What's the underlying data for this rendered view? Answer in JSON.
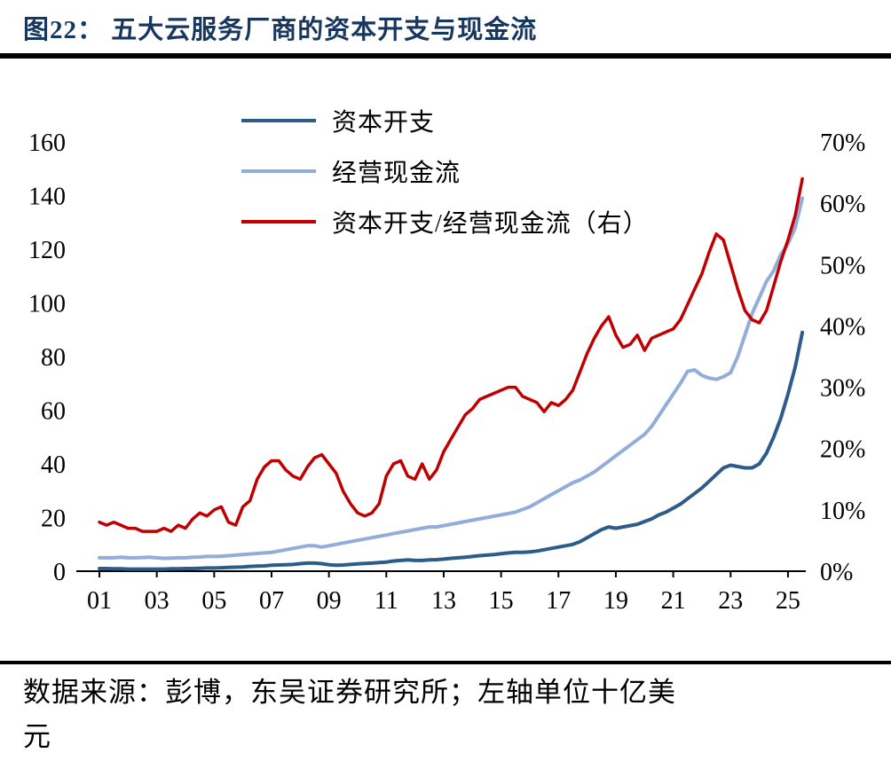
{
  "title": "图22：  五大云服务厂商的资本开支与现金流",
  "footer_lines": [
    "数据来源：彭博，东吴证券研究所；左轴单位十亿美",
    "元"
  ],
  "chart_data": {
    "type": "line",
    "title": "五大云服务厂商的资本开支与现金流",
    "x_start": 2001,
    "x_step": 0.25,
    "x_end": 2025.5,
    "x_ticks": [
      "01",
      "03",
      "05",
      "07",
      "09",
      "11",
      "13",
      "15",
      "17",
      "19",
      "21",
      "23",
      "25"
    ],
    "x_tick_years": [
      2001,
      2003,
      2005,
      2007,
      2009,
      2011,
      2013,
      2015,
      2017,
      2019,
      2021,
      2023,
      2025
    ],
    "left_axis": {
      "min": 0,
      "max": 160,
      "ticks": [
        0,
        20,
        40,
        60,
        80,
        100,
        120,
        140,
        160
      ],
      "unit": "十亿美元"
    },
    "right_axis": {
      "min": 0,
      "max": 70,
      "ticks": [
        0,
        10,
        20,
        30,
        40,
        50,
        60,
        70
      ],
      "unit": "%"
    },
    "grid": false,
    "legend_position": "top-center",
    "series": [
      {
        "id": "capex",
        "name": "资本开支",
        "axis": "left",
        "color": "#2E5C8A",
        "width": 4,
        "values": [
          1,
          1,
          0.9,
          0.9,
          0.8,
          0.8,
          0.8,
          0.8,
          0.8,
          0.8,
          0.9,
          0.9,
          1,
          1,
          1.1,
          1.2,
          1.2,
          1.3,
          1.4,
          1.5,
          1.6,
          1.8,
          1.9,
          2,
          2.2,
          2.3,
          2.4,
          2.5,
          2.8,
          3,
          3,
          2.8,
          2.4,
          2.2,
          2.3,
          2.5,
          2.7,
          2.9,
          3,
          3.2,
          3.4,
          3.8,
          4,
          4.2,
          4,
          4,
          4.2,
          4.3,
          4.5,
          4.8,
          5,
          5.2,
          5.5,
          5.8,
          6,
          6.2,
          6.5,
          6.8,
          7,
          7,
          7.2,
          7.5,
          8,
          8.5,
          9,
          9.5,
          10,
          11,
          12.5,
          14,
          15.5,
          16.5,
          16,
          16.5,
          17,
          17.5,
          18.5,
          19.5,
          21,
          22,
          23.5,
          25,
          27,
          29,
          31,
          33.5,
          36,
          38.5,
          39.5,
          39,
          38.5,
          38.5,
          40,
          44,
          50,
          57,
          66,
          76,
          89
        ]
      },
      {
        "id": "ocf",
        "name": "经营现金流",
        "axis": "left",
        "color": "#93ADDB",
        "width": 4,
        "values": [
          5,
          5,
          5,
          5.2,
          5,
          5,
          5.1,
          5.2,
          5,
          4.8,
          4.9,
          5,
          5,
          5.2,
          5.3,
          5.5,
          5.5,
          5.6,
          5.8,
          6,
          6.2,
          6.4,
          6.6,
          6.8,
          7,
          7.5,
          8,
          8.5,
          9,
          9.5,
          9.5,
          9,
          9.5,
          10,
          10.5,
          11,
          11.5,
          12,
          12.5,
          13,
          13.5,
          14,
          14.5,
          15,
          15.5,
          16,
          16.5,
          16.5,
          17,
          17.5,
          18,
          18.5,
          19,
          19.5,
          20,
          20.5,
          21,
          21.5,
          22,
          23,
          24,
          25.5,
          27,
          28.5,
          30,
          31.5,
          33,
          34,
          35.5,
          37,
          39,
          41,
          43,
          45,
          47,
          49,
          51,
          54,
          58,
          62,
          66,
          70,
          74.5,
          75,
          73,
          72,
          71.5,
          72.5,
          74,
          80,
          88,
          96,
          102,
          108,
          112,
          118,
          122,
          128,
          139
        ]
      },
      {
        "id": "ratio",
        "name": "资本开支/经营现金流（右）",
        "axis": "right",
        "color": "#C00000",
        "width": 3.5,
        "values": [
          8,
          7.5,
          8,
          7.5,
          7,
          7,
          6.5,
          6.5,
          6.5,
          7,
          6.5,
          7.5,
          7,
          8.5,
          9.5,
          9,
          10,
          10.5,
          8,
          7.5,
          10.5,
          11.5,
          15,
          17,
          18,
          18,
          16.5,
          15.5,
          15,
          17,
          18.5,
          19,
          17.5,
          16,
          13,
          11,
          9.5,
          9,
          9.5,
          11,
          15.5,
          17.5,
          18,
          15.5,
          15,
          17.5,
          15,
          16.5,
          19.5,
          21.5,
          23.5,
          25.5,
          26.5,
          28,
          28.5,
          29,
          29.5,
          30,
          30,
          28.5,
          28,
          27.5,
          26,
          27.5,
          27,
          28,
          29.5,
          32.5,
          35.5,
          38,
          40,
          41.5,
          38.5,
          36.5,
          37,
          38.5,
          36,
          38,
          38.5,
          39,
          39.5,
          41,
          43.5,
          46,
          48.5,
          52,
          55,
          54,
          50,
          46,
          42.5,
          41,
          40.5,
          42.5,
          46.5,
          50.5,
          54,
          58,
          64
        ]
      }
    ]
  }
}
